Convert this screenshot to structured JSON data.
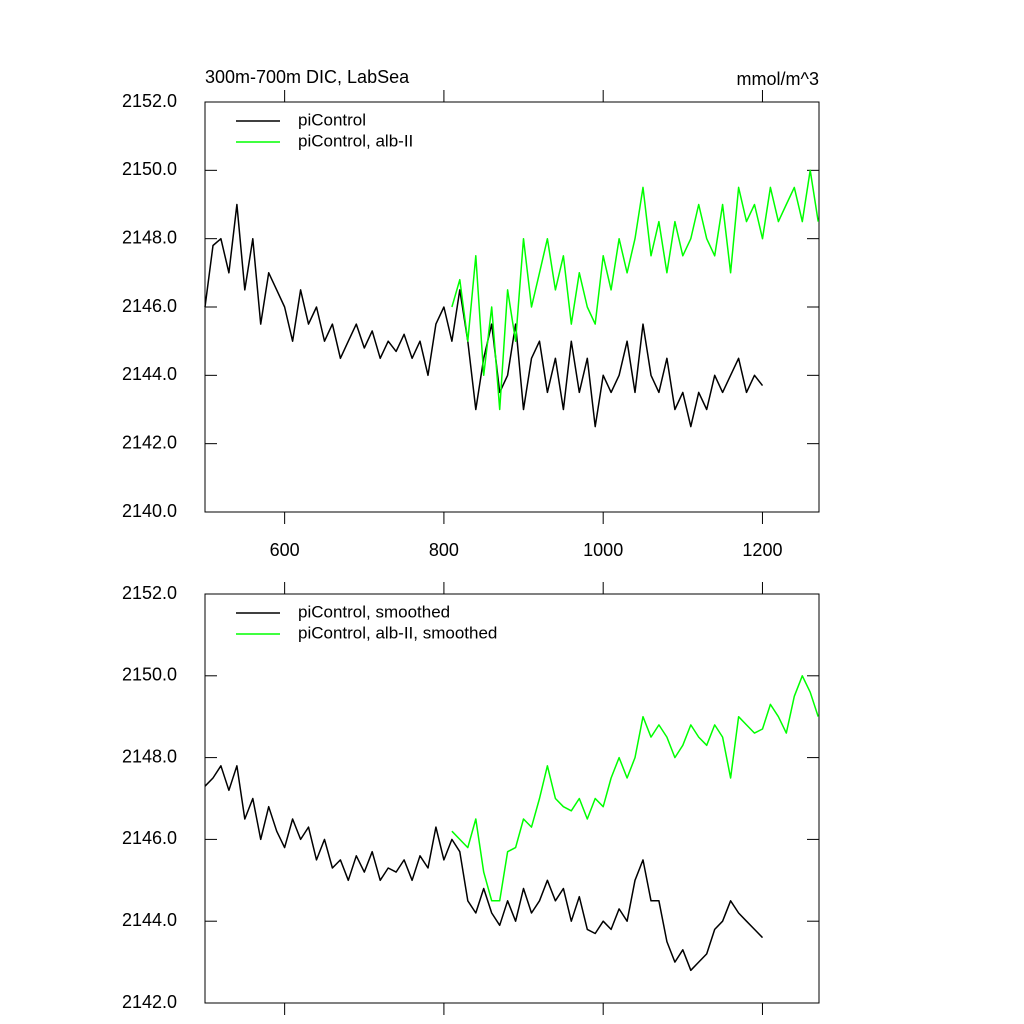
{
  "chart_data": [
    {
      "type": "line",
      "title": "300m-700m DIC, LabSea",
      "units": "mmol/m^3",
      "xlim": [
        500,
        1271
      ],
      "xticks": [
        600,
        800,
        1000,
        1200
      ],
      "ylim": [
        2140,
        2152
      ],
      "yticks": [
        {
          "value": 2140,
          "label": "2140.0"
        },
        {
          "value": 2142,
          "label": "2142.0"
        },
        {
          "value": 2144,
          "label": "2144.0"
        },
        {
          "value": 2146,
          "label": "2146.0"
        },
        {
          "value": 2148,
          "label": "2148.0"
        },
        {
          "value": 2150,
          "label": "2150.0"
        },
        {
          "value": 2152,
          "label": "2152.0"
        }
      ],
      "series": [
        {
          "name": "piControl",
          "color": "#000000",
          "x": [
            500,
            510,
            520,
            530,
            540,
            550,
            560,
            570,
            580,
            590,
            600,
            610,
            620,
            630,
            640,
            650,
            660,
            670,
            680,
            690,
            700,
            710,
            720,
            730,
            740,
            750,
            760,
            770,
            780,
            790,
            800,
            810,
            820,
            830,
            840,
            850,
            860,
            870,
            880,
            890,
            900,
            910,
            920,
            930,
            940,
            950,
            960,
            970,
            980,
            990,
            1000,
            1010,
            1020,
            1030,
            1040,
            1050,
            1060,
            1070,
            1080,
            1090,
            1100,
            1110,
            1120,
            1130,
            1140,
            1150,
            1160,
            1170,
            1180,
            1190,
            1200
          ],
          "values": [
            2146.0,
            2147.8,
            2148.0,
            2147.0,
            2149.0,
            2146.5,
            2148.0,
            2145.5,
            2147.0,
            2146.5,
            2146.0,
            2145.0,
            2146.5,
            2145.5,
            2146.0,
            2145.0,
            2145.5,
            2144.5,
            2145.0,
            2145.5,
            2144.8,
            2145.3,
            2144.5,
            2145.0,
            2144.7,
            2145.2,
            2144.5,
            2145.0,
            2144.0,
            2145.5,
            2146.0,
            2145.0,
            2146.5,
            2145.0,
            2143.0,
            2144.5,
            2145.5,
            2143.5,
            2144.0,
            2145.5,
            2143.0,
            2144.5,
            2145.0,
            2143.5,
            2144.5,
            2143.0,
            2145.0,
            2143.5,
            2144.5,
            2142.5,
            2144.0,
            2143.5,
            2144.0,
            2145.0,
            2143.5,
            2145.5,
            2144.0,
            2143.5,
            2144.5,
            2143.0,
            2143.5,
            2142.5,
            2143.5,
            2143.0,
            2144.0,
            2143.5,
            2144.0,
            2144.5,
            2143.5,
            2144.0,
            2143.7
          ]
        },
        {
          "name": "piControl, alb-II",
          "color": "#00ff00",
          "x": [
            810,
            820,
            830,
            840,
            850,
            860,
            870,
            880,
            890,
            900,
            910,
            920,
            930,
            940,
            950,
            960,
            970,
            980,
            990,
            1000,
            1010,
            1020,
            1030,
            1040,
            1050,
            1060,
            1070,
            1080,
            1090,
            1100,
            1110,
            1120,
            1130,
            1140,
            1150,
            1160,
            1170,
            1180,
            1190,
            1200,
            1210,
            1220,
            1230,
            1240,
            1250,
            1260,
            1270
          ],
          "values": [
            2146.0,
            2146.8,
            2145.0,
            2147.5,
            2144.0,
            2146.0,
            2143.0,
            2146.5,
            2145.0,
            2148.0,
            2146.0,
            2147.0,
            2148.0,
            2146.5,
            2147.5,
            2145.5,
            2147.0,
            2146.0,
            2145.5,
            2147.5,
            2146.5,
            2148.0,
            2147.0,
            2148.0,
            2149.5,
            2147.5,
            2148.5,
            2147.0,
            2148.5,
            2147.5,
            2148.0,
            2149.0,
            2148.0,
            2147.5,
            2149.0,
            2147.0,
            2149.5,
            2148.5,
            2149.0,
            2148.0,
            2149.5,
            2148.5,
            2149.0,
            2149.5,
            2148.5,
            2150.0,
            2148.5
          ]
        }
      ]
    },
    {
      "type": "line",
      "xlim": [
        500,
        1271
      ],
      "xticks": [
        600,
        800,
        1000,
        1200
      ],
      "ylim": [
        2142,
        2152
      ],
      "yticks": [
        {
          "value": 2142,
          "label": "2142.0"
        },
        {
          "value": 2144,
          "label": "2144.0"
        },
        {
          "value": 2146,
          "label": "2146.0"
        },
        {
          "value": 2148,
          "label": "2148.0"
        },
        {
          "value": 2150,
          "label": "2150.0"
        },
        {
          "value": 2152,
          "label": "2152.0"
        }
      ],
      "series": [
        {
          "name": "piControl, smoothed",
          "color": "#000000",
          "x": [
            500,
            510,
            520,
            530,
            540,
            550,
            560,
            570,
            580,
            590,
            600,
            610,
            620,
            630,
            640,
            650,
            660,
            670,
            680,
            690,
            700,
            710,
            720,
            730,
            740,
            750,
            760,
            770,
            780,
            790,
            800,
            810,
            820,
            830,
            840,
            850,
            860,
            870,
            880,
            890,
            900,
            910,
            920,
            930,
            940,
            950,
            960,
            970,
            980,
            990,
            1000,
            1010,
            1020,
            1030,
            1040,
            1050,
            1060,
            1070,
            1080,
            1090,
            1100,
            1110,
            1120,
            1130,
            1140,
            1150,
            1160,
            1170,
            1180,
            1190,
            1200
          ],
          "values": [
            2147.3,
            2147.5,
            2147.8,
            2147.2,
            2147.8,
            2146.5,
            2147.0,
            2146.0,
            2146.8,
            2146.2,
            2145.8,
            2146.5,
            2146.0,
            2146.3,
            2145.5,
            2146.0,
            2145.3,
            2145.5,
            2145.0,
            2145.6,
            2145.2,
            2145.7,
            2145.0,
            2145.3,
            2145.2,
            2145.5,
            2145.0,
            2145.6,
            2145.3,
            2146.3,
            2145.5,
            2146.0,
            2145.7,
            2144.5,
            2144.2,
            2144.8,
            2144.2,
            2143.9,
            2144.5,
            2144.0,
            2144.8,
            2144.2,
            2144.5,
            2145.0,
            2144.5,
            2144.8,
            2144.0,
            2144.6,
            2143.8,
            2143.7,
            2144.0,
            2143.8,
            2144.3,
            2144.0,
            2145.0,
            2145.5,
            2144.5,
            2144.5,
            2143.5,
            2143.0,
            2143.3,
            2142.8,
            2143.0,
            2143.2,
            2143.8,
            2144.0,
            2144.5,
            2144.2,
            2144.0,
            2143.8,
            2143.6
          ]
        },
        {
          "name": "piControl, alb-II, smoothed",
          "color": "#00ff00",
          "x": [
            810,
            820,
            830,
            840,
            850,
            860,
            870,
            880,
            890,
            900,
            910,
            920,
            930,
            940,
            950,
            960,
            970,
            980,
            990,
            1000,
            1010,
            1020,
            1030,
            1040,
            1050,
            1060,
            1070,
            1080,
            1090,
            1100,
            1110,
            1120,
            1130,
            1140,
            1150,
            1160,
            1170,
            1180,
            1190,
            1200,
            1210,
            1220,
            1230,
            1240,
            1250,
            1260,
            1270
          ],
          "values": [
            2146.2,
            2146.0,
            2145.8,
            2146.5,
            2145.2,
            2144.5,
            2144.5,
            2145.7,
            2145.8,
            2146.5,
            2146.3,
            2147.0,
            2147.8,
            2147.0,
            2146.8,
            2146.7,
            2147.0,
            2146.5,
            2147.0,
            2146.8,
            2147.5,
            2148.0,
            2147.5,
            2148.0,
            2149.0,
            2148.5,
            2148.8,
            2148.5,
            2148.0,
            2148.3,
            2148.8,
            2148.5,
            2148.3,
            2148.8,
            2148.5,
            2147.5,
            2149.0,
            2148.8,
            2148.6,
            2148.7,
            2149.3,
            2149.0,
            2148.6,
            2149.5,
            2150.0,
            2149.6,
            2149.0
          ]
        }
      ]
    }
  ]
}
